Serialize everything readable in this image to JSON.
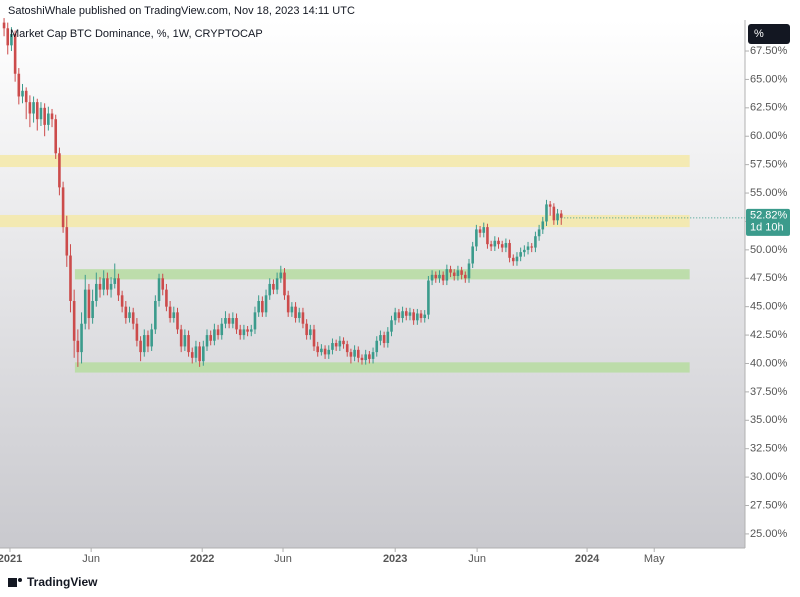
{
  "header": "SatoshiWhale published on TradingView.com, Nov 18, 2023 14:11 UTC",
  "footer": "TradingView",
  "chart_data": {
    "type": "candlestick",
    "legend": "Market Cap BTC Dominance, %, 1W, CRYPTOCAP",
    "unit_button": "%",
    "up_color": "#3b9b8c",
    "down_color": "#cc4b4b",
    "ylim": [
      23.76,
      70.23
    ],
    "yticks": [
      {
        "value": 25,
        "label": "25.00%"
      },
      {
        "value": 27.5,
        "label": "27.50%"
      },
      {
        "value": 30,
        "label": "30.00%"
      },
      {
        "value": 32.5,
        "label": "32.50%"
      },
      {
        "value": 35,
        "label": "35.00%"
      },
      {
        "value": 37.5,
        "label": "37.50%"
      },
      {
        "value": 40,
        "label": "40.00%"
      },
      {
        "value": 42.5,
        "label": "42.50%"
      },
      {
        "value": 45,
        "label": "45.00%"
      },
      {
        "value": 47.5,
        "label": "47.50%"
      },
      {
        "value": 50,
        "label": "50.00%"
      },
      {
        "value": 52.5,
        "label": "52.50%"
      },
      {
        "value": 55,
        "label": "55.00%"
      },
      {
        "value": 57.5,
        "label": "57.50%"
      },
      {
        "value": 60,
        "label": "60.00%"
      },
      {
        "value": 62.5,
        "label": "62.50%"
      },
      {
        "value": 65,
        "label": "65.00%"
      },
      {
        "value": 67.5,
        "label": "67.50%"
      }
    ],
    "xlim": [
      -1.1,
      200.8
    ],
    "xticks": [
      {
        "value": 1.6,
        "label": "2021"
      },
      {
        "value": 23.6,
        "label": "Jun"
      },
      {
        "value": 53.7,
        "label": "2022"
      },
      {
        "value": 75.6,
        "label": "Jun"
      },
      {
        "value": 106,
        "label": "2023"
      },
      {
        "value": 128.2,
        "label": "Jun"
      },
      {
        "value": 158,
        "label": "2024"
      },
      {
        "value": 176.2,
        "label": "May"
      }
    ],
    "last_value": {
      "value": 52.82,
      "label": "52.82%"
    },
    "countdown": "1d 10h",
    "zones": [
      {
        "lo": 57.29,
        "hi": 58.35,
        "start": -1.1,
        "end": 185.8,
        "color": "#f5e9a8"
      },
      {
        "lo": 52.0,
        "hi": 53.07,
        "start": -1.1,
        "end": 185.8,
        "color": "#f5e9a8"
      },
      {
        "lo": 47.4,
        "hi": 48.3,
        "start": 19.2,
        "end": 185.8,
        "color": "#b6dca0"
      },
      {
        "lo": 39.2,
        "hi": 40.1,
        "start": 19.2,
        "end": 185.8,
        "color": "#b6dca0"
      }
    ],
    "candles": [
      [
        70.0,
        70.4,
        68.8,
        69.5
      ],
      [
        69.5,
        70.0,
        67.2,
        68.0
      ],
      [
        68.0,
        69.6,
        67.5,
        69.0
      ],
      [
        69.0,
        69.3,
        64.8,
        65.5
      ],
      [
        65.5,
        66.0,
        62.8,
        63.5
      ],
      [
        63.5,
        64.6,
        62.9,
        64.0
      ],
      [
        64.0,
        64.3,
        61.5,
        63.0
      ],
      [
        63.0,
        63.6,
        60.8,
        62.0
      ],
      [
        62.0,
        63.5,
        61.2,
        63.0
      ],
      [
        63.0,
        63.3,
        60.5,
        61.5
      ],
      [
        61.5,
        63.0,
        60.9,
        62.5
      ],
      [
        62.5,
        62.9,
        60.0,
        61.0
      ],
      [
        61.0,
        62.6,
        60.5,
        62.0
      ],
      [
        62.0,
        62.4,
        60.8,
        61.5
      ],
      [
        61.5,
        61.9,
        58.0,
        58.5
      ],
      [
        58.5,
        59.0,
        54.8,
        55.5
      ],
      [
        55.5,
        56.0,
        51.5,
        52.0
      ],
      [
        52.0,
        53.0,
        48.5,
        49.5
      ],
      [
        49.5,
        50.5,
        44.5,
        45.5
      ],
      [
        45.5,
        46.5,
        40.5,
        42.0
      ],
      [
        42.0,
        43.0,
        39.7,
        41.0
      ],
      [
        41.0,
        44.5,
        40.0,
        43.5
      ],
      [
        43.5,
        47.8,
        43.0,
        46.5
      ],
      [
        46.5,
        47.0,
        43.0,
        44.0
      ],
      [
        44.0,
        46.5,
        43.5,
        45.5
      ],
      [
        45.5,
        48.0,
        45.0,
        47.0
      ],
      [
        47.0,
        47.6,
        45.8,
        46.5
      ],
      [
        46.5,
        48.2,
        46.0,
        47.5
      ],
      [
        47.5,
        48.0,
        46.0,
        46.5
      ],
      [
        46.5,
        47.6,
        45.8,
        47.0
      ],
      [
        47.0,
        48.8,
        46.6,
        47.5
      ],
      [
        47.5,
        47.9,
        45.5,
        46.0
      ],
      [
        46.0,
        46.4,
        44.5,
        45.0
      ],
      [
        45.0,
        45.5,
        43.5,
        44.0
      ],
      [
        44.0,
        45.0,
        43.6,
        44.5
      ],
      [
        44.5,
        44.9,
        43.0,
        43.5
      ],
      [
        43.5,
        44.0,
        41.5,
        42.0
      ],
      [
        42.0,
        42.4,
        40.2,
        41.0
      ],
      [
        41.0,
        43.0,
        40.6,
        42.5
      ],
      [
        42.5,
        42.9,
        41.0,
        41.5
      ],
      [
        41.5,
        43.5,
        41.1,
        43.0
      ],
      [
        43.0,
        46.0,
        42.6,
        45.5
      ],
      [
        45.5,
        47.9,
        45.0,
        47.5
      ],
      [
        47.5,
        47.9,
        46.0,
        46.5
      ],
      [
        46.5,
        47.0,
        44.6,
        45.0
      ],
      [
        45.0,
        45.5,
        43.6,
        44.0
      ],
      [
        44.0,
        45.0,
        43.6,
        44.5
      ],
      [
        44.5,
        44.9,
        42.6,
        43.0
      ],
      [
        43.0,
        43.4,
        41.0,
        41.5
      ],
      [
        41.5,
        43.0,
        41.1,
        42.5
      ],
      [
        42.5,
        42.9,
        40.6,
        41.0
      ],
      [
        41.0,
        41.4,
        40.0,
        40.5
      ],
      [
        40.5,
        42.0,
        40.1,
        41.5
      ],
      [
        41.5,
        41.9,
        39.7,
        40.2
      ],
      [
        40.2,
        42.0,
        39.8,
        41.5
      ],
      [
        41.5,
        43.0,
        41.1,
        42.5
      ],
      [
        42.5,
        42.9,
        41.6,
        42.0
      ],
      [
        42.0,
        43.5,
        41.6,
        43.0
      ],
      [
        43.0,
        43.4,
        42.1,
        42.5
      ],
      [
        42.5,
        44.0,
        42.1,
        43.5
      ],
      [
        43.5,
        44.6,
        43.1,
        44.0
      ],
      [
        44.0,
        44.4,
        43.1,
        43.5
      ],
      [
        43.5,
        44.5,
        43.1,
        44.0
      ],
      [
        44.0,
        44.4,
        42.6,
        43.0
      ],
      [
        43.0,
        43.4,
        42.1,
        42.5
      ],
      [
        42.5,
        43.4,
        42.1,
        43.0
      ],
      [
        43.0,
        43.3,
        42.4,
        42.8
      ],
      [
        42.8,
        43.4,
        42.4,
        43.0
      ],
      [
        43.0,
        45.0,
        42.6,
        44.5
      ],
      [
        44.5,
        46.0,
        44.1,
        45.5
      ],
      [
        45.5,
        45.9,
        44.1,
        44.5
      ],
      [
        44.5,
        46.5,
        44.1,
        46.0
      ],
      [
        46.0,
        47.5,
        45.6,
        47.0
      ],
      [
        47.0,
        47.4,
        46.1,
        46.5
      ],
      [
        46.5,
        48.0,
        46.1,
        47.5
      ],
      [
        47.5,
        48.6,
        47.1,
        48.0
      ],
      [
        48.0,
        48.4,
        45.6,
        46.0
      ],
      [
        46.0,
        46.4,
        44.1,
        44.5
      ],
      [
        44.5,
        45.4,
        44.1,
        45.0
      ],
      [
        45.0,
        45.4,
        43.6,
        44.0
      ],
      [
        44.0,
        44.9,
        43.6,
        44.5
      ],
      [
        44.5,
        44.9,
        43.1,
        43.5
      ],
      [
        43.5,
        43.9,
        42.1,
        42.5
      ],
      [
        42.5,
        43.4,
        42.1,
        43.0
      ],
      [
        43.0,
        43.4,
        41.1,
        41.5
      ],
      [
        41.5,
        41.9,
        40.6,
        41.0
      ],
      [
        41.0,
        41.7,
        40.7,
        41.3
      ],
      [
        41.3,
        41.6,
        40.4,
        40.8
      ],
      [
        40.8,
        41.6,
        40.4,
        41.2
      ],
      [
        41.2,
        42.2,
        40.8,
        41.8
      ],
      [
        41.8,
        42.1,
        41.1,
        41.5
      ],
      [
        41.5,
        42.4,
        41.1,
        42.0
      ],
      [
        42.0,
        42.3,
        41.3,
        41.7
      ],
      [
        41.7,
        42.0,
        40.6,
        41.0
      ],
      [
        41.0,
        41.3,
        40.0,
        40.6
      ],
      [
        40.6,
        41.6,
        40.2,
        41.2
      ],
      [
        41.2,
        41.5,
        40.1,
        40.5
      ],
      [
        40.5,
        40.8,
        39.9,
        40.3
      ],
      [
        40.3,
        41.2,
        39.9,
        40.8
      ],
      [
        40.8,
        41.1,
        40.0,
        40.4
      ],
      [
        40.4,
        41.4,
        40.0,
        41.0
      ],
      [
        41.0,
        42.4,
        40.6,
        42.0
      ],
      [
        42.0,
        42.9,
        41.6,
        42.5
      ],
      [
        42.5,
        42.8,
        41.4,
        41.8
      ],
      [
        41.8,
        43.2,
        41.4,
        42.8
      ],
      [
        42.8,
        44.2,
        42.4,
        43.8
      ],
      [
        43.8,
        44.9,
        43.4,
        44.5
      ],
      [
        44.5,
        44.8,
        43.6,
        44.0
      ],
      [
        44.0,
        45.0,
        43.6,
        44.6
      ],
      [
        44.6,
        44.9,
        43.8,
        44.2
      ],
      [
        44.2,
        44.9,
        43.8,
        44.5
      ],
      [
        44.5,
        44.8,
        43.4,
        43.8
      ],
      [
        43.8,
        44.8,
        43.4,
        44.4
      ],
      [
        44.4,
        44.7,
        43.6,
        44.0
      ],
      [
        44.0,
        44.7,
        43.6,
        44.3
      ],
      [
        44.3,
        47.7,
        43.9,
        47.3
      ],
      [
        47.3,
        48.2,
        46.9,
        47.8
      ],
      [
        47.8,
        48.1,
        47.1,
        47.5
      ],
      [
        47.5,
        48.2,
        47.1,
        47.8
      ],
      [
        47.8,
        48.1,
        46.9,
        47.3
      ],
      [
        47.3,
        48.7,
        46.9,
        48.3
      ],
      [
        48.3,
        48.6,
        47.6,
        48.0
      ],
      [
        48.0,
        48.3,
        47.3,
        47.7
      ],
      [
        47.7,
        48.6,
        47.3,
        48.2
      ],
      [
        48.2,
        48.5,
        47.4,
        47.8
      ],
      [
        47.8,
        48.1,
        47.1,
        47.5
      ],
      [
        47.5,
        49.2,
        47.1,
        48.8
      ],
      [
        48.8,
        50.7,
        48.4,
        50.3
      ],
      [
        50.3,
        52.2,
        49.9,
        51.8
      ],
      [
        51.8,
        52.1,
        51.1,
        51.5
      ],
      [
        51.5,
        52.4,
        51.1,
        52.0
      ],
      [
        52.0,
        52.3,
        50.1,
        50.5
      ],
      [
        50.5,
        50.8,
        49.9,
        50.3
      ],
      [
        50.3,
        51.2,
        49.9,
        50.8
      ],
      [
        50.8,
        51.1,
        50.1,
        50.5
      ],
      [
        50.5,
        50.8,
        49.8,
        50.2
      ],
      [
        50.2,
        51.0,
        49.8,
        50.6
      ],
      [
        50.6,
        50.9,
        48.9,
        49.3
      ],
      [
        49.3,
        49.6,
        48.6,
        49.0
      ],
      [
        49.0,
        49.8,
        48.6,
        49.4
      ],
      [
        49.4,
        50.2,
        49.0,
        49.8
      ],
      [
        49.8,
        50.4,
        49.4,
        50.0
      ],
      [
        50.0,
        50.7,
        49.6,
        50.3
      ],
      [
        50.3,
        50.6,
        49.8,
        50.2
      ],
      [
        50.2,
        51.6,
        49.8,
        51.2
      ],
      [
        51.2,
        52.2,
        50.8,
        51.8
      ],
      [
        51.8,
        52.9,
        51.4,
        52.5
      ],
      [
        52.5,
        54.4,
        52.1,
        54.0
      ],
      [
        54.0,
        54.3,
        53.0,
        53.8
      ],
      [
        53.8,
        54.1,
        52.2,
        52.6
      ],
      [
        52.6,
        53.6,
        52.2,
        53.2
      ],
      [
        53.2,
        53.5,
        52.2,
        52.82
      ]
    ]
  }
}
